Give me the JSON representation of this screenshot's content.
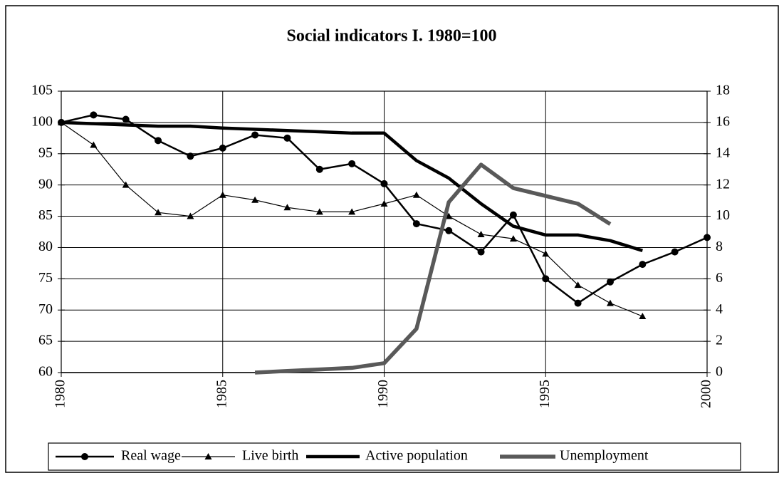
{
  "chart_data": {
    "type": "line",
    "title": "Social indicators I. 1980=100",
    "x": [
      1980,
      1981,
      1982,
      1983,
      1984,
      1985,
      1986,
      1987,
      1988,
      1989,
      1990,
      1991,
      1992,
      1993,
      1994,
      1995,
      1996,
      1997,
      1998,
      1999,
      2000
    ],
    "xlim": [
      1980,
      2000
    ],
    "xticks": [
      1980,
      1985,
      1990,
      1995,
      2000
    ],
    "ylim": [
      60,
      105
    ],
    "yticks": [
      60,
      65,
      70,
      75,
      80,
      85,
      90,
      95,
      100,
      105
    ],
    "y2lim": [
      0,
      18
    ],
    "y2ticks": [
      0,
      2,
      4,
      6,
      8,
      10,
      12,
      14,
      16,
      18
    ],
    "grid": true,
    "legend": "bottom",
    "series": [
      {
        "name": "Real wage",
        "color": "#000000",
        "marker": "circle",
        "values": [
          100,
          101.2,
          100.5,
          97.1,
          94.6,
          95.9,
          98.0,
          97.5,
          92.5,
          93.4,
          90.2,
          83.8,
          82.7,
          79.3,
          85.2,
          75.0,
          71.1,
          74.5,
          77.3,
          79.3,
          81.6
        ]
      },
      {
        "name": "Live birth",
        "color": "#000000",
        "marker": "triangle",
        "values": [
          100,
          96.4,
          90.0,
          85.6,
          85.0,
          88.4,
          87.6,
          86.4,
          85.7,
          85.7,
          87.0,
          88.4,
          85.0,
          82.1,
          81.4,
          79.0,
          74.0,
          71.1,
          69.0,
          null,
          null
        ]
      },
      {
        "name": "Active population",
        "color": "#000000",
        "values": [
          100,
          99.8,
          99.6,
          99.4,
          99.4,
          99.1,
          98.9,
          98.7,
          98.5,
          98.3,
          98.3,
          93.9,
          91.1,
          87.0,
          83.4,
          82.0,
          82.0,
          81.1,
          79.5,
          null,
          null
        ]
      },
      {
        "name": "Unemployment",
        "color": "#595959",
        "axis": "y2",
        "values": [
          null,
          null,
          null,
          null,
          null,
          null,
          0.0,
          0.1,
          0.2,
          0.3,
          0.6,
          2.8,
          10.9,
          13.3,
          11.8,
          11.3,
          10.8,
          9.5,
          null,
          null,
          null
        ]
      }
    ]
  }
}
